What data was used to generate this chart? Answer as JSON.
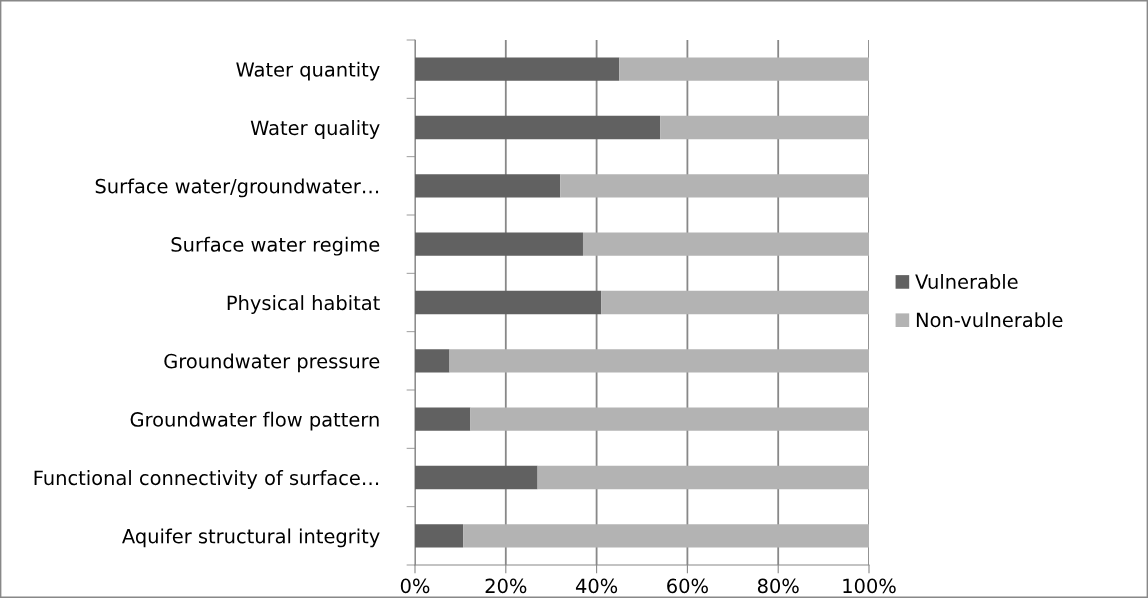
{
  "chart_data": {
    "type": "bar",
    "orientation": "horizontal",
    "stacked": true,
    "categories": [
      "Water quantity",
      "Water quality",
      "Surface water/groundwater…",
      "Surface water regime",
      "Physical habitat",
      "Groundwater pressure",
      "Groundwater flow pattern",
      "Functional connectivity of surface…",
      "Aquifer structural integrity"
    ],
    "series": [
      {
        "name": "Vulnerable",
        "color": "#616161",
        "values": [
          45,
          54,
          32,
          37,
          41,
          7.6,
          12.2,
          27,
          10.6
        ]
      },
      {
        "name": "Non-vulnerable",
        "color": "#b3b3b3",
        "values": [
          55,
          46,
          68,
          63,
          59,
          92.4,
          87.8,
          73,
          89.4
        ]
      }
    ],
    "xlim": [
      0,
      100
    ],
    "xticks": [
      {
        "value": 0,
        "label": "0%"
      },
      {
        "value": 20,
        "label": "20%"
      },
      {
        "value": 40,
        "label": "40%"
      },
      {
        "value": 60,
        "label": "60%"
      },
      {
        "value": 80,
        "label": "80%"
      },
      {
        "value": 100,
        "label": "100%"
      }
    ],
    "grid": "x",
    "legend": "right"
  }
}
